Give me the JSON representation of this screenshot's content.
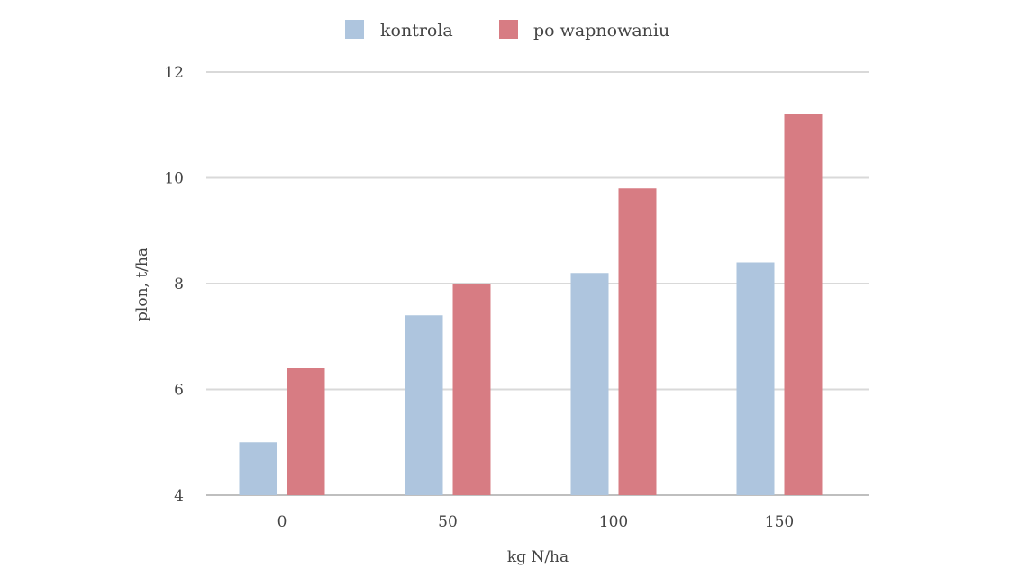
{
  "chart_data": {
    "type": "bar",
    "title": "",
    "xlabel": "kg N/ha",
    "ylabel": "plon, t/ha",
    "categories": [
      "0",
      "50",
      "100",
      "150"
    ],
    "series": [
      {
        "name": "kontrola",
        "color": "#aec5de",
        "values": [
          5.0,
          7.4,
          8.2,
          8.4
        ]
      },
      {
        "name": "po wapnowaniu",
        "color": "#d77c83",
        "values": [
          6.4,
          8.0,
          9.8,
          11.2
        ]
      }
    ],
    "ylim": [
      4,
      12
    ],
    "yticks": [
      "4",
      "6",
      "8",
      "10",
      "12"
    ],
    "grid": true,
    "legend_position": "top-center",
    "grid_color": "#d9d9d9",
    "axis_color": "#bfbfbf"
  }
}
